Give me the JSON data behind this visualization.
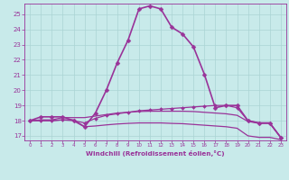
{
  "bg_color": "#c8eaea",
  "grid_color": "#aad4d4",
  "line_color": "#993399",
  "xlabel": "Windchill (Refroidissement éolien,°C)",
  "xlim": [
    -0.5,
    23.5
  ],
  "ylim": [
    16.7,
    25.7
  ],
  "yticks": [
    17,
    18,
    19,
    20,
    21,
    22,
    23,
    24,
    25
  ],
  "xticks": [
    0,
    1,
    2,
    3,
    4,
    5,
    6,
    7,
    8,
    9,
    10,
    11,
    12,
    13,
    14,
    15,
    16,
    17,
    18,
    19,
    20,
    21,
    22,
    23
  ],
  "series": [
    {
      "x": [
        0,
        1,
        2,
        3,
        4,
        5,
        6,
        7,
        8,
        9,
        10,
        11,
        12,
        13,
        14,
        15,
        16,
        17,
        18,
        19,
        20,
        21,
        22,
        23
      ],
      "y": [
        18.0,
        18.25,
        18.25,
        18.25,
        18.0,
        17.6,
        18.5,
        20.0,
        21.8,
        23.3,
        25.35,
        25.55,
        25.35,
        24.15,
        23.7,
        22.85,
        21.05,
        18.85,
        19.0,
        19.0,
        18.0,
        17.85,
        17.85,
        16.9
      ],
      "marker": "D",
      "markersize": 2.5,
      "linewidth": 1.2
    },
    {
      "x": [
        0,
        1,
        2,
        3,
        4,
        5,
        6,
        7,
        8,
        9,
        10,
        11,
        12,
        13,
        14,
        15,
        16,
        17,
        18,
        19,
        20,
        21,
        22,
        23
      ],
      "y": [
        18.0,
        18.0,
        18.0,
        18.05,
        18.0,
        17.85,
        18.15,
        18.35,
        18.45,
        18.55,
        18.65,
        18.7,
        18.75,
        18.8,
        18.85,
        18.9,
        18.95,
        19.0,
        19.0,
        18.85,
        18.0,
        17.85,
        17.85,
        16.9
      ],
      "marker": "D",
      "markersize": 2,
      "linewidth": 0.9
    },
    {
      "x": [
        0,
        1,
        2,
        3,
        4,
        5,
        6,
        7,
        8,
        9,
        10,
        11,
        12,
        13,
        14,
        15,
        16,
        17,
        18,
        19,
        20,
        21,
        22,
        23
      ],
      "y": [
        18.0,
        18.05,
        18.05,
        18.2,
        18.2,
        18.2,
        18.3,
        18.4,
        18.5,
        18.55,
        18.6,
        18.62,
        18.62,
        18.62,
        18.62,
        18.6,
        18.55,
        18.5,
        18.45,
        18.35,
        17.95,
        17.82,
        17.82,
        16.9
      ],
      "marker": null,
      "markersize": 2,
      "linewidth": 0.9
    },
    {
      "x": [
        0,
        1,
        2,
        3,
        4,
        5,
        6,
        7,
        8,
        9,
        10,
        11,
        12,
        13,
        14,
        15,
        16,
        17,
        18,
        19,
        20,
        21,
        22,
        23
      ],
      "y": [
        18.0,
        18.0,
        18.0,
        18.05,
        18.05,
        17.6,
        17.65,
        17.72,
        17.78,
        17.82,
        17.85,
        17.85,
        17.85,
        17.82,
        17.8,
        17.75,
        17.7,
        17.65,
        17.6,
        17.5,
        17.0,
        16.9,
        16.9,
        16.75
      ],
      "marker": null,
      "markersize": 2,
      "linewidth": 0.9
    }
  ]
}
